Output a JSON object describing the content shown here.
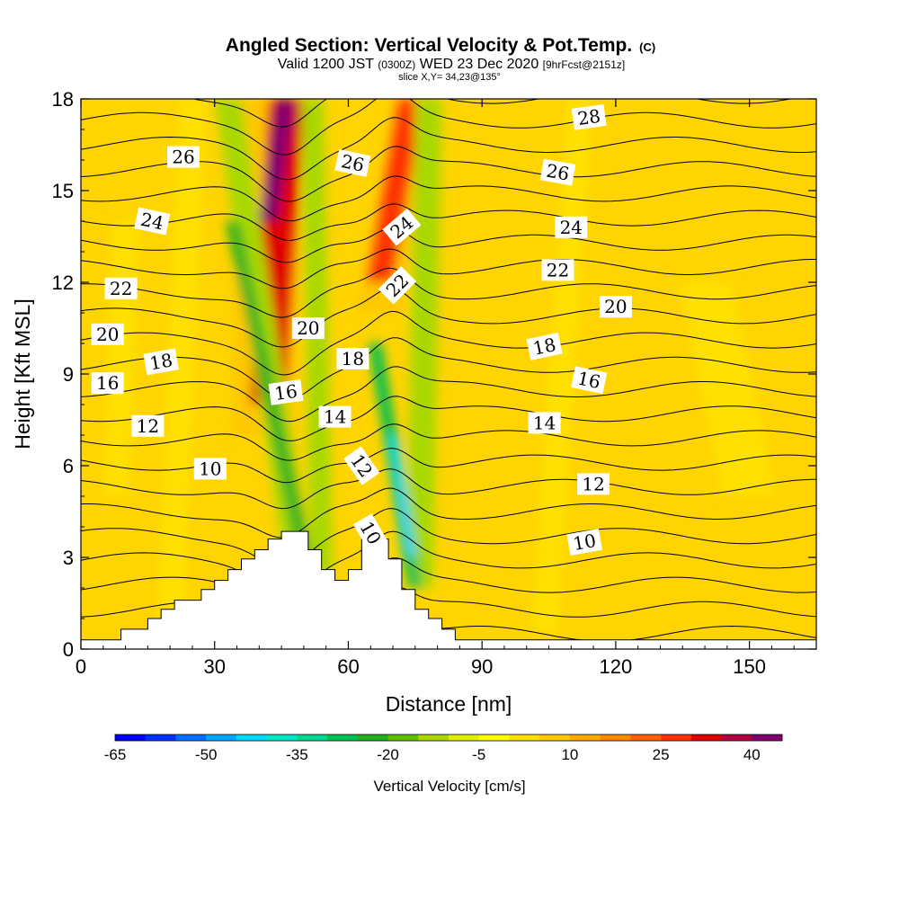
{
  "chart_data": {
    "type": "heatmap",
    "title": "Angled Section: Vertical Velocity & Pot.Temp.",
    "title_units": "(C)",
    "subtitle_parts": [
      "Valid 1200 JST ",
      "(0300Z)",
      " WED 23 Dec 2020 ",
      "[9hrFcst@2151z]"
    ],
    "slice_label": "slice X,Y= 34,23@135°",
    "xlabel": "Distance [nm]",
    "ylabel": "Height [Kft MSL]",
    "xlim": [
      0,
      165
    ],
    "ylim": [
      0,
      18
    ],
    "x_ticks": [
      0,
      30,
      60,
      90,
      120,
      150
    ],
    "x_tick_labels": [
      "0",
      "30",
      "60",
      "90",
      "120",
      "150"
    ],
    "y_ticks": [
      0,
      3,
      6,
      9,
      12,
      15,
      18
    ],
    "y_tick_labels": [
      "0",
      "3",
      "6",
      "9",
      "12",
      "15",
      "18"
    ],
    "background_color": "#ffd400",
    "colorbar": {
      "label": "Vertical Velocity [cm/s]",
      "min": -65,
      "max": 45,
      "tick_values": [
        -65,
        -50,
        -35,
        -20,
        -5,
        10,
        25,
        40
      ],
      "tick_labels": [
        "-65",
        "-50",
        "-35",
        "-20",
        "-5",
        "10",
        "25",
        "40"
      ],
      "colors": [
        "#0000ff",
        "#0030ff",
        "#0070ff",
        "#00a8ff",
        "#00d8ff",
        "#00e8c8",
        "#00d890",
        "#00c050",
        "#20b020",
        "#60c000",
        "#a8d800",
        "#e0f000",
        "#ffff00",
        "#ffe000",
        "#ffc800",
        "#ffa800",
        "#ff8800",
        "#ff6000",
        "#ff3000",
        "#e00000",
        "#b00040",
        "#800070"
      ]
    },
    "velocity_bands": [
      {
        "x_bottom": 41,
        "x_top": 42,
        "y_bottom": 7,
        "y_top": 18,
        "half_width": 7,
        "value": 10
      },
      {
        "x_bottom": 42,
        "x_top": 46,
        "y_bottom": 8,
        "y_top": 18,
        "half_width": 4,
        "value": 30
      },
      {
        "x_bottom": 42,
        "x_top": 46,
        "y_bottom": 14,
        "y_top": 18,
        "half_width": 2,
        "value": 42
      },
      {
        "x_bottom": 67,
        "x_top": 75,
        "y_bottom": 11,
        "y_top": 18,
        "half_width": 5,
        "value": 10
      },
      {
        "x_bottom": 67,
        "x_top": 74,
        "y_bottom": 12,
        "y_top": 18,
        "half_width": 3,
        "value": 28
      },
      {
        "x_bottom": 49,
        "x_top": 33,
        "y_bottom": 2.5,
        "y_top": 18,
        "half_width": 3,
        "value": -12
      },
      {
        "x_bottom": 51,
        "x_top": 34,
        "y_bottom": 2.5,
        "y_top": 14,
        "half_width": 1.5,
        "value": -24
      },
      {
        "x_bottom": 54,
        "x_top": 52,
        "y_bottom": 2.5,
        "y_top": 18,
        "half_width": 2.5,
        "value": -12
      },
      {
        "x_bottom": 76,
        "x_top": 78,
        "y_bottom": 2,
        "y_top": 18,
        "half_width": 3,
        "value": -12
      },
      {
        "x_bottom": 75,
        "x_top": 66,
        "y_bottom": 2,
        "y_top": 10,
        "half_width": 1.5,
        "value": -28
      },
      {
        "x_bottom": 74,
        "x_top": 70,
        "y_bottom": 3,
        "y_top": 7,
        "half_width": 1,
        "value": -45
      },
      {
        "x_bottom": 104,
        "x_top": 112,
        "y_bottom": 0.5,
        "y_top": 18,
        "half_width": 3,
        "value": 2
      },
      {
        "x_bottom": 20,
        "x_top": 25,
        "y_bottom": 0.5,
        "y_top": 18,
        "half_width": 3,
        "value": 2
      },
      {
        "x_bottom": 8,
        "x_top": 10,
        "y_bottom": 5,
        "y_top": 14,
        "half_width": 3,
        "value": 2
      },
      {
        "x_bottom": 150,
        "x_top": 140,
        "y_bottom": 5,
        "y_top": 12,
        "half_width": 6,
        "value": 2
      }
    ],
    "terrain_profile": [
      [
        0,
        0.3
      ],
      [
        9,
        0.3
      ],
      [
        9,
        0.65
      ],
      [
        15,
        0.65
      ],
      [
        15,
        1.0
      ],
      [
        18,
        1.0
      ],
      [
        18,
        1.3
      ],
      [
        21,
        1.3
      ],
      [
        21,
        1.6
      ],
      [
        27,
        1.6
      ],
      [
        27,
        1.95
      ],
      [
        30,
        1.95
      ],
      [
        30,
        2.25
      ],
      [
        33,
        2.25
      ],
      [
        33,
        2.6
      ],
      [
        36,
        2.6
      ],
      [
        36,
        2.95
      ],
      [
        39,
        2.95
      ],
      [
        39,
        3.25
      ],
      [
        42,
        3.25
      ],
      [
        42,
        3.6
      ],
      [
        45,
        3.6
      ],
      [
        45,
        3.85
      ],
      [
        51,
        3.85
      ],
      [
        51,
        3.25
      ],
      [
        54,
        3.25
      ],
      [
        54,
        2.6
      ],
      [
        57,
        2.6
      ],
      [
        57,
        2.25
      ],
      [
        60,
        2.25
      ],
      [
        60,
        2.6
      ],
      [
        63,
        2.6
      ],
      [
        63,
        3.6
      ],
      [
        69,
        3.6
      ],
      [
        69,
        2.95
      ],
      [
        72,
        2.95
      ],
      [
        72,
        1.95
      ],
      [
        75,
        1.95
      ],
      [
        75,
        1.3
      ],
      [
        78,
        1.3
      ],
      [
        78,
        1.0
      ],
      [
        81,
        1.0
      ],
      [
        81,
        0.65
      ],
      [
        84,
        0.65
      ],
      [
        84,
        0.3
      ],
      [
        87,
        0.3
      ],
      [
        87,
        0.3
      ],
      [
        165,
        0.3
      ]
    ],
    "potential_temperature_contours": {
      "start_c": 6,
      "end_c": 28,
      "step_c": 1,
      "base_height_kft": 0.5,
      "kft_per_degree": 0.8
    },
    "contour_labels": [
      {
        "text": "28",
        "x": 114,
        "y": 17.4,
        "angle": -8
      },
      {
        "text": "26",
        "x": 23,
        "y": 16.1,
        "angle": 0
      },
      {
        "text": "26",
        "x": 61,
        "y": 15.9,
        "angle": 12
      },
      {
        "text": "26",
        "x": 107,
        "y": 15.6,
        "angle": 10
      },
      {
        "text": "24",
        "x": 16,
        "y": 14.0,
        "angle": 12
      },
      {
        "text": "24",
        "x": 72,
        "y": 13.8,
        "angle": -40
      },
      {
        "text": "24",
        "x": 110,
        "y": 13.8,
        "angle": 0
      },
      {
        "text": "22",
        "x": 9,
        "y": 11.8,
        "angle": 0
      },
      {
        "text": "22",
        "x": 71,
        "y": 11.9,
        "angle": -45
      },
      {
        "text": "22",
        "x": 107,
        "y": 12.4,
        "angle": 0
      },
      {
        "text": "20",
        "x": 6,
        "y": 10.3,
        "angle": 0
      },
      {
        "text": "20",
        "x": 51,
        "y": 10.5,
        "angle": 0
      },
      {
        "text": "20",
        "x": 120,
        "y": 11.2,
        "angle": 0
      },
      {
        "text": "18",
        "x": 18,
        "y": 9.4,
        "angle": -10
      },
      {
        "text": "18",
        "x": 61,
        "y": 9.5,
        "angle": 0
      },
      {
        "text": "18",
        "x": 104,
        "y": 9.9,
        "angle": -12
      },
      {
        "text": "16",
        "x": 6,
        "y": 8.7,
        "angle": 0
      },
      {
        "text": "16",
        "x": 46,
        "y": 8.4,
        "angle": -8
      },
      {
        "text": "16",
        "x": 114,
        "y": 8.8,
        "angle": 12
      },
      {
        "text": "14",
        "x": 57,
        "y": 7.6,
        "angle": 0
      },
      {
        "text": "14",
        "x": 104,
        "y": 7.4,
        "angle": 0
      },
      {
        "text": "12",
        "x": 15,
        "y": 7.3,
        "angle": 0
      },
      {
        "text": "12",
        "x": 63,
        "y": 6.0,
        "angle": 55
      },
      {
        "text": "12",
        "x": 115,
        "y": 5.4,
        "angle": 0
      },
      {
        "text": "10",
        "x": 29,
        "y": 5.9,
        "angle": 0
      },
      {
        "text": "10",
        "x": 65,
        "y": 3.8,
        "angle": 60
      },
      {
        "text": "10",
        "x": 113,
        "y": 3.5,
        "angle": -10
      }
    ]
  }
}
